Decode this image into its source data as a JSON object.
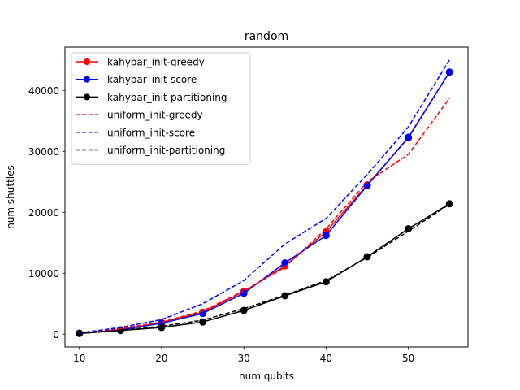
{
  "chart_data": {
    "type": "line",
    "title": "random",
    "xlabel": "num qubits",
    "ylabel": "num shuttles",
    "x": [
      10,
      15,
      20,
      25,
      30,
      35,
      40,
      45,
      50,
      55
    ],
    "xticks": [
      10,
      20,
      30,
      40,
      50
    ],
    "yticks": [
      0,
      10000,
      20000,
      30000,
      40000
    ],
    "xlim": [
      8.25,
      57.25
    ],
    "ylim": [
      -2100,
      47100
    ],
    "grid": false,
    "legend_position": "upper-left",
    "series": [
      {
        "name": "kahypar_init-greedy",
        "color": "#ff0000",
        "style": "solid",
        "marker": "circle",
        "values": [
          150,
          700,
          1900,
          3600,
          7000,
          11200,
          16800,
          24500,
          32200,
          43000
        ]
      },
      {
        "name": "kahypar_init-score",
        "color": "#0000ff",
        "style": "solid",
        "marker": "circle",
        "values": [
          150,
          700,
          1800,
          3400,
          6700,
          11700,
          16200,
          24400,
          32300,
          43000
        ]
      },
      {
        "name": "kahypar_init-partitioning",
        "color": "#000000",
        "style": "solid",
        "marker": "circle",
        "values": [
          120,
          600,
          1100,
          2000,
          3900,
          6300,
          8600,
          12700,
          17300,
          21400
        ]
      },
      {
        "name": "uniform_init-greedy",
        "color": "#ff0000",
        "style": "dashed",
        "marker": "none",
        "values": [
          150,
          900,
          2000,
          3800,
          7100,
          11000,
          17300,
          25000,
          29500,
          38700
        ]
      },
      {
        "name": "uniform_init-score",
        "color": "#0000ff",
        "style": "dashed",
        "marker": "none",
        "values": [
          200,
          1100,
          2400,
          5000,
          8800,
          14800,
          19000,
          26200,
          34000,
          45000
        ]
      },
      {
        "name": "uniform_init-partitioning",
        "color": "#000000",
        "style": "dashed",
        "marker": "none",
        "values": [
          120,
          650,
          1300,
          2300,
          4200,
          6400,
          8800,
          12600,
          16900,
          21300
        ]
      }
    ]
  }
}
